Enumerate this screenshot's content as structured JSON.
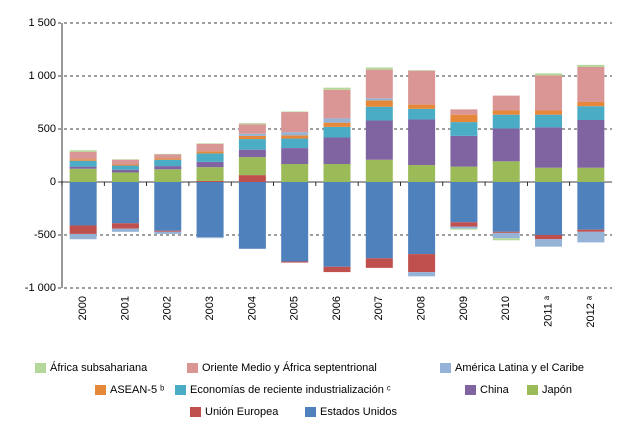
{
  "chart_data": {
    "type": "stacked_bar",
    "categories": [
      "2000",
      "2001",
      "2002",
      "2003",
      "2004",
      "2005",
      "2006",
      "2007",
      "2008",
      "2009",
      "2010",
      "2011 ᵃ",
      "2012 ᵃ"
    ],
    "ylim": [
      -1000,
      1500
    ],
    "yticks": [
      {
        "value": -1000,
        "label": "-1 000"
      },
      -500,
      0,
      500,
      {
        "value": 1000,
        "label": "1 000"
      },
      {
        "value": 1500,
        "label": "1 500"
      }
    ],
    "grid": true,
    "series": [
      {
        "name": "Estados Unidos",
        "color": "#4f81bd",
        "values": [
          -410,
          -390,
          -460,
          -520,
          -630,
          -750,
          -800,
          -720,
          -680,
          -380,
          -470,
          -500,
          -450
        ]
      },
      {
        "name": "Unión Europea",
        "color": "#c0504d",
        "values": [
          -80,
          -50,
          -10,
          10,
          65,
          -10,
          -50,
          -90,
          -170,
          -40,
          -10,
          -40,
          -20
        ]
      },
      {
        "name": "Japón",
        "color": "#9bbb59",
        "values": [
          125,
          90,
          120,
          130,
          170,
          170,
          170,
          210,
          160,
          145,
          195,
          135,
          135
        ]
      },
      {
        "name": "China",
        "color": "#8064a2",
        "values": [
          20,
          25,
          30,
          50,
          70,
          150,
          250,
          370,
          430,
          290,
          310,
          380,
          450
        ]
      },
      {
        "name": "Economías de reciente industrialización ᶜ",
        "color": "#4bacc6",
        "values": [
          55,
          40,
          60,
          80,
          100,
          90,
          100,
          130,
          100,
          130,
          130,
          120,
          130
        ]
      },
      {
        "name": "ASEAN-5 ᵇ",
        "color": "#e6883a",
        "values": [
          15,
          10,
          15,
          20,
          30,
          30,
          40,
          60,
          40,
          70,
          40,
          40,
          40
        ]
      },
      {
        "name": "América Latina y el Caribe",
        "color": "#95b3d7",
        "values": [
          -50,
          -30,
          -20,
          -10,
          20,
          30,
          40,
          20,
          -40,
          -20,
          -50,
          -70,
          -100
        ]
      },
      {
        "name": "Oriente Medio y África septentrional",
        "color": "#d99694",
        "values": [
          70,
          45,
          35,
          70,
          90,
          190,
          270,
          270,
          320,
          50,
          140,
          330,
          330
        ]
      },
      {
        "name": "África subsahariana",
        "color": "#b5d89a",
        "values": [
          15,
          5,
          5,
          5,
          10,
          5,
          20,
          20,
          5,
          -10,
          -20,
          20,
          20
        ]
      }
    ]
  }
}
